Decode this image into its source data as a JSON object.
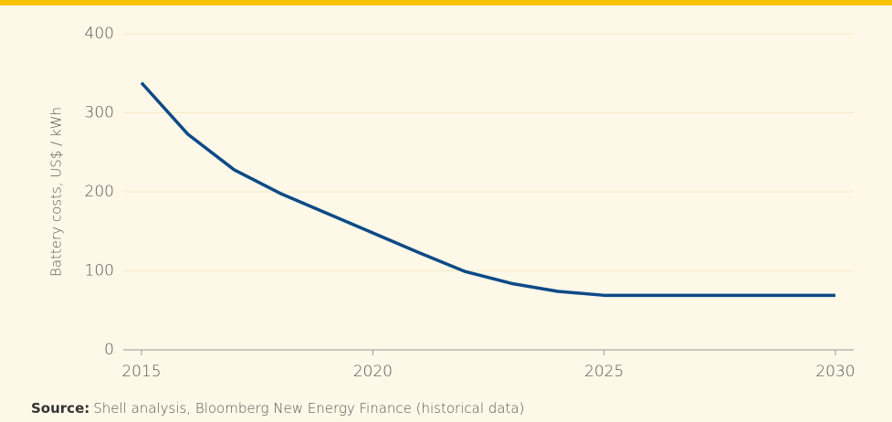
{
  "chart_data": {
    "type": "line",
    "y_label": "Battery costs, US$ / kWh",
    "x": [
      2015,
      2016,
      2017,
      2018,
      2019,
      2020,
      2021,
      2022,
      2023,
      2024,
      2025,
      2026,
      2027,
      2028,
      2029,
      2030
    ],
    "series": [
      {
        "name": "Battery costs",
        "color": "#0d4a87",
        "values": [
          338,
          273,
          228,
          198,
          173,
          148,
          123,
          99,
          84,
          74,
          69,
          69,
          69,
          69,
          69,
          69
        ]
      }
    ],
    "xlim": [
      2015,
      2030
    ],
    "xticks": [
      2015,
      2020,
      2025,
      2030
    ],
    "ylim": [
      0,
      400
    ],
    "yticks": [
      0,
      100,
      200,
      300,
      400
    ],
    "grid": true
  },
  "source": {
    "label": "Source:",
    "text": "Shell analysis, Bloomberg New Energy Finance (historical data)"
  }
}
